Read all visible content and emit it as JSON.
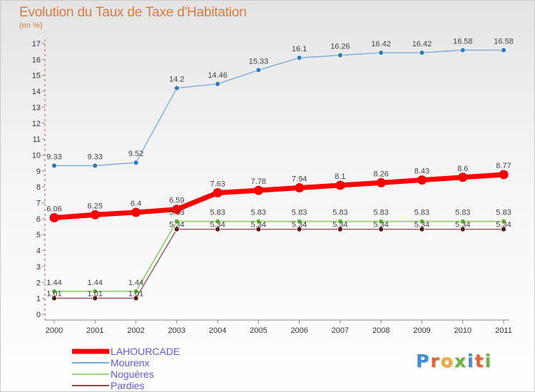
{
  "title": "Evolution du Taux de Taxe d'Habitation",
  "subtitle": "(en %)",
  "logo": {
    "letters": [
      "P",
      "r",
      "o",
      "x",
      "i",
      "t",
      "i"
    ],
    "colors": [
      "#3a8fd6",
      "#e8622c",
      "#f2a92c",
      "#6cb33f",
      "#3a8fd6",
      "#e8622c",
      "#6cb33f"
    ]
  },
  "chart_data": {
    "type": "line",
    "x": [
      "2000",
      "2001",
      "2002",
      "2003",
      "2004",
      "2005",
      "2006",
      "2007",
      "2008",
      "2009",
      "2010",
      "2011"
    ],
    "ylim": [
      0,
      17
    ],
    "yticks": [
      "0",
      "1",
      "2",
      "3",
      "4",
      "5",
      "6",
      "7",
      "8",
      "9",
      "10",
      "11",
      "12",
      "13",
      "14",
      "15",
      "16",
      "17"
    ],
    "grid": false,
    "legend_position": "bottom-left",
    "series": [
      {
        "name": "LAHOURCADE",
        "color": "#ff0000",
        "marker_color": "#ff0000",
        "values": [
          6.06,
          6.25,
          6.4,
          6.59,
          7.63,
          7.78,
          7.94,
          8.1,
          8.26,
          8.43,
          8.6,
          8.77
        ],
        "labels": [
          "6.06",
          "6.25",
          "6.4",
          "6.59",
          "7.63",
          "7.78",
          "7.94",
          "8.1",
          "8.26",
          "8.43",
          "8.6",
          "8.77"
        ]
      },
      {
        "name": "Mourenx",
        "color": "#74a9d8",
        "marker_color": "#2b7bc4",
        "values": [
          9.33,
          9.33,
          9.52,
          14.2,
          14.46,
          15.33,
          16.1,
          16.26,
          16.42,
          16.42,
          16.58,
          16.58
        ],
        "labels": [
          "9.33",
          "9.33",
          "9.52",
          "14.2",
          "14.46",
          "15.33",
          "16.1",
          "16.26",
          "16.42",
          "16.42",
          "16.58",
          "16.58"
        ]
      },
      {
        "name": "Noguères",
        "color": "#9fd67e",
        "marker_color": "#5cb82a",
        "values": [
          1.44,
          1.44,
          1.44,
          5.83,
          5.83,
          5.83,
          5.83,
          5.83,
          5.83,
          5.83,
          5.83,
          5.83
        ],
        "labels": [
          "1.44",
          "1.44",
          "1.44",
          "5.83",
          "5.83",
          "5.83",
          "5.83",
          "5.83",
          "5.83",
          "5.83",
          "5.83",
          "5.83"
        ]
      },
      {
        "name": "Pardies",
        "color": "#8c4a4a",
        "marker_color": "#5a1818",
        "values": [
          1.01,
          1.01,
          1.01,
          5.34,
          5.34,
          5.34,
          5.34,
          5.34,
          5.34,
          5.34,
          5.34,
          5.34
        ],
        "labels": [
          "1.01",
          "1.01",
          "1.01",
          "5.34",
          "5.34",
          "5.34",
          "5.34",
          "5.34",
          "5.34",
          "5.34",
          "5.34",
          "5.34"
        ]
      }
    ]
  }
}
